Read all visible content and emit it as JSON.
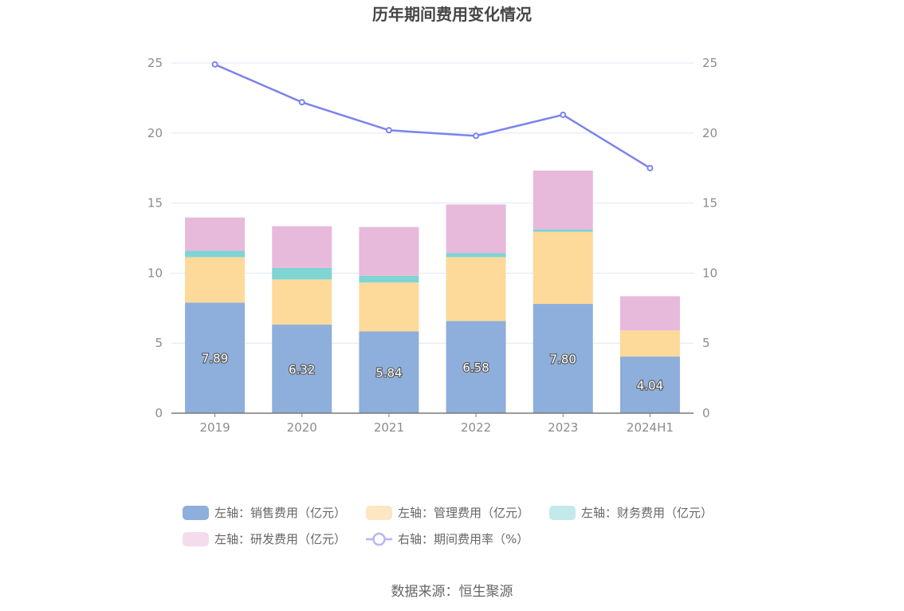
{
  "chart_data": {
    "type": "bar",
    "title": "历年期间费用变化情况",
    "categories": [
      "2019",
      "2020",
      "2021",
      "2022",
      "2023",
      "2024H1"
    ],
    "series": [
      {
        "name": "左轴：销售费用（亿元）",
        "type": "bar",
        "axis": "left",
        "color": "#8eaedb",
        "values": [
          7.89,
          6.32,
          5.84,
          6.58,
          7.8,
          4.04
        ],
        "labels": [
          "7.89",
          "6.32",
          "5.84",
          "6.58",
          "7.80",
          "4.04"
        ]
      },
      {
        "name": "左轴：管理费用（亿元）",
        "type": "bar",
        "axis": "left",
        "color": "#fdd99a",
        "values": [
          3.25,
          3.23,
          3.49,
          4.56,
          5.15,
          1.87
        ]
      },
      {
        "name": "左轴：财务费用（亿元）",
        "type": "bar",
        "axis": "left",
        "color": "#7fd4d4",
        "values": [
          0.45,
          0.82,
          0.48,
          0.28,
          0.17,
          0.0
        ]
      },
      {
        "name": "左轴：研发费用（亿元）",
        "type": "bar",
        "axis": "left",
        "color": "#e7b9da",
        "values": [
          2.38,
          2.98,
          3.48,
          3.48,
          4.2,
          2.44
        ]
      },
      {
        "name": "右轴：期间费用率（%）",
        "type": "line",
        "axis": "right",
        "color": "#7b83eb",
        "values": [
          24.9,
          22.2,
          20.2,
          19.8,
          21.3,
          17.5
        ]
      }
    ],
    "ylim_left": [
      0,
      25
    ],
    "ylim_right": [
      0,
      25
    ],
    "yticks": [
      "0",
      "5",
      "10",
      "15",
      "20",
      "25"
    ],
    "grid": true,
    "legend_position": "bottom"
  },
  "source": "数据来源：恒生聚源"
}
